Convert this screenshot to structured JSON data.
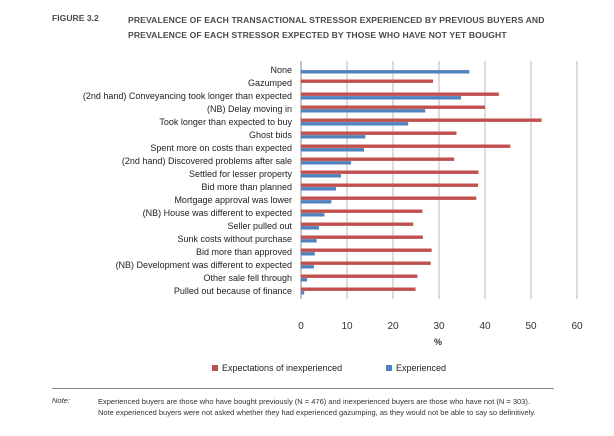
{
  "figure_label": "FIGURE 3.2",
  "title": "PREVALENCE OF EACH TRANSACTIONAL STRESSOR EXPERIENCED BY PREVIOUS BUYERS AND PREVALENCE OF EACH STRESSOR EXPECTED BY THOSE WHO HAVE NOT YET BOUGHT",
  "note_label": "Note:",
  "note_text": "Experienced buyers are those who have bought previously (N = 476) and inexperienced buyers are those who have not (N = 303). Note experienced buyers were not asked whether they had experienced gazumping, as they would not be able to say so definitively.",
  "chart_data": {
    "type": "bar",
    "orientation": "horizontal",
    "categories": [
      "None",
      "Gazumped",
      "(2nd hand) Conveyancing took longer than expected",
      "(NB) Delay moving in",
      "Took longer than expected to buy",
      "Ghost bids",
      "Spent more on costs than expected",
      "(2nd hand) Discovered problems after sale",
      "Settled for lesser property",
      "Bid more than planned",
      "Mortgage approval was lower",
      "(NB) House was different to expected",
      "Seller pulled out",
      "Sunk costs without purchase",
      "Bid more than approved",
      "(NB) Development was different to expected",
      "Other sale fell through",
      "Pulled out because of finance"
    ],
    "series": [
      {
        "name": "Expectations of inexperienced",
        "color": "#c0504d",
        "values": [
          null,
          28.7,
          43.0,
          40.0,
          52.3,
          33.8,
          45.5,
          33.3,
          38.6,
          38.5,
          38.1,
          26.4,
          24.4,
          26.5,
          28.4,
          28.2,
          25.3,
          24.9
        ]
      },
      {
        "name": "Experienced",
        "color": "#4f81bd",
        "values": [
          36.6,
          null,
          34.8,
          27.0,
          23.3,
          14.0,
          13.7,
          10.9,
          8.7,
          7.6,
          6.6,
          5.1,
          3.9,
          3.4,
          3.0,
          2.8,
          1.3,
          0.7
        ]
      }
    ],
    "xlabel": "%",
    "xlim": [
      0,
      60
    ],
    "xticks": [
      "0",
      "10",
      "20",
      "30",
      "40",
      "50",
      "60"
    ],
    "grid": true,
    "legend_position": "bottom"
  }
}
